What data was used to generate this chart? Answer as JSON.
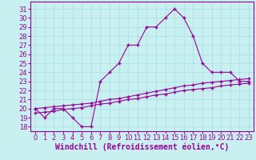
{
  "xlabel": "Windchill (Refroidissement éolien,°C)",
  "background_color": "#c8f0f0",
  "line_color": "#990099",
  "hours": [
    0,
    1,
    2,
    3,
    4,
    5,
    6,
    7,
    8,
    9,
    10,
    11,
    12,
    13,
    14,
    15,
    16,
    17,
    18,
    19,
    20,
    21,
    22,
    23
  ],
  "temp_line": [
    20,
    19,
    20,
    20,
    19,
    18,
    18,
    23,
    24,
    25,
    27,
    27,
    29,
    29,
    30,
    31,
    30,
    28,
    25,
    24,
    24,
    24,
    23,
    23
  ],
  "line2": [
    20.0,
    20.1,
    20.2,
    20.3,
    20.4,
    20.5,
    20.6,
    20.8,
    21.0,
    21.1,
    21.3,
    21.5,
    21.7,
    21.9,
    22.1,
    22.3,
    22.5,
    22.6,
    22.8,
    22.9,
    23.0,
    23.1,
    23.2,
    23.3
  ],
  "line3": [
    19.5,
    19.6,
    19.7,
    19.9,
    20.0,
    20.1,
    20.3,
    20.5,
    20.6,
    20.8,
    21.0,
    21.1,
    21.3,
    21.5,
    21.6,
    21.8,
    22.0,
    22.1,
    22.2,
    22.3,
    22.5,
    22.6,
    22.7,
    22.8
  ],
  "ylim_min": 17.5,
  "ylim_max": 31.8,
  "yticks": [
    18,
    19,
    20,
    21,
    22,
    23,
    24,
    25,
    26,
    27,
    28,
    29,
    30,
    31
  ],
  "xticks": [
    0,
    1,
    2,
    3,
    4,
    5,
    6,
    7,
    8,
    9,
    10,
    11,
    12,
    13,
    14,
    15,
    16,
    17,
    18,
    19,
    20,
    21,
    22,
    23
  ],
  "grid_color": "#aadddd",
  "marker": "+",
  "linewidth": 0.8,
  "markersize": 2.5,
  "fontsize": 6,
  "xlabel_fontsize": 7
}
